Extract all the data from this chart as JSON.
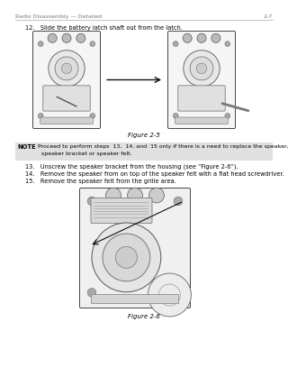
{
  "page_bg": "#ffffff",
  "header_left": "Radio Disassembly — Detailed",
  "header_right": "2-7",
  "step12_text": "12.   Slide the battery latch shaft out from the latch.",
  "fig5_label": "Figure 2-5",
  "note_bg": "#e0e0e0",
  "note_label": "NOTE",
  "note_line1": "Proceed to perform steps  13,  14, and  15 only if there is a need to replace the speaker,",
  "note_line2": "  speaker bracket or speaker felt.",
  "step13_text": "13.   Unscrew the speaker bracket from the housing (see “Figure 2-6”).",
  "step14_text": "14.   Remove the speaker from on top of the speaker felt with a flat head screwdriver.",
  "step15_text": "15.   Remove the speaker felt from the grille area.",
  "fig6_label": "Figure 2-6",
  "font_size_header": 4.5,
  "font_size_body": 4.8,
  "font_size_note_label": 4.8,
  "font_size_note": 4.5,
  "font_size_fig": 5.0,
  "text_color": "#000000",
  "header_color": "#777777",
  "radio_face": "#f5f5f5",
  "radio_edge": "#444444",
  "radio_inner": "#e0e0e0",
  "radio_dark": "#888888"
}
